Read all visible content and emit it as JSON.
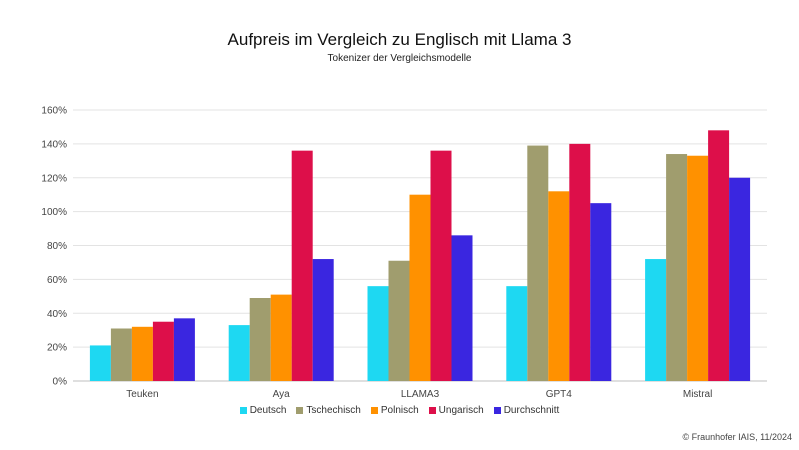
{
  "chart_data": {
    "type": "bar",
    "title": "Aufpreis im Vergleich zu Englisch mit Llama 3",
    "subtitle": "Tokenizer der Vergleichsmodelle",
    "xlabel": "",
    "ylabel": "",
    "categories": [
      "Teuken",
      "Aya",
      "LLAMA3",
      "GPT4",
      "Mistral"
    ],
    "ylim": [
      0,
      160
    ],
    "yticks": [
      "0%",
      "20%",
      "40%",
      "60%",
      "80%",
      "100%",
      "120%",
      "140%",
      "160%"
    ],
    "grid": "horizontal",
    "legend_position": "bottom",
    "series": [
      {
        "name": "Deutsch",
        "color": "#1ed8f2",
        "values": [
          21,
          33,
          56,
          56,
          72
        ]
      },
      {
        "name": "Tschechisch",
        "color": "#a09d6e",
        "values": [
          31,
          49,
          71,
          139,
          134
        ]
      },
      {
        "name": "Polnisch",
        "color": "#ff9100",
        "values": [
          32,
          51,
          110,
          112,
          133
        ]
      },
      {
        "name": "Ungarisch",
        "color": "#dd0f4a",
        "values": [
          35,
          136,
          136,
          140,
          148
        ]
      },
      {
        "name": "Durchschnitt",
        "color": "#3a26e0",
        "values": [
          37,
          72,
          86,
          105,
          120
        ]
      }
    ]
  },
  "copyright": "© Fraunhofer IAIS, 11/2024"
}
